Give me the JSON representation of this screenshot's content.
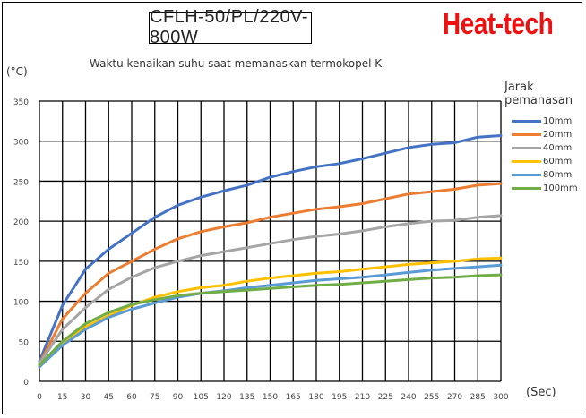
{
  "header": {
    "model": "CFLH-50/PL/220V-800W",
    "brand": "Heat-tech"
  },
  "chart_data": {
    "type": "line",
    "title": "Waktu kenaikan suhu saat memanaskan termokopel K",
    "xlabel": "(Sec)",
    "ylabel": "(°C)",
    "xlim": [
      0,
      300
    ],
    "ylim": [
      0,
      350
    ],
    "grid": true,
    "legend_position": "right",
    "legend_title": [
      "Jarak",
      "pemanasan"
    ],
    "x_ticks": [
      0,
      15,
      30,
      45,
      60,
      75,
      90,
      105,
      120,
      135,
      150,
      165,
      180,
      195,
      210,
      225,
      240,
      255,
      270,
      285,
      300
    ],
    "y_ticks": [
      0,
      50,
      100,
      150,
      200,
      250,
      300,
      350
    ],
    "x": [
      0,
      15,
      30,
      45,
      60,
      75,
      90,
      105,
      120,
      135,
      150,
      165,
      180,
      195,
      210,
      225,
      240,
      255,
      270,
      285,
      300
    ],
    "series": [
      {
        "name": "10mm",
        "color": "#4472c4",
        "values": [
          25,
          95,
          140,
          165,
          185,
          205,
          220,
          230,
          238,
          245,
          255,
          262,
          268,
          272,
          278,
          285,
          292,
          296,
          298,
          305,
          307
        ]
      },
      {
        "name": "20mm",
        "color": "#ed7d31",
        "values": [
          22,
          78,
          110,
          135,
          150,
          165,
          178,
          187,
          193,
          198,
          205,
          210,
          215,
          218,
          222,
          228,
          234,
          237,
          240,
          245,
          247
        ]
      },
      {
        "name": "40mm",
        "color": "#a5a5a5",
        "values": [
          22,
          65,
          92,
          115,
          130,
          142,
          150,
          157,
          162,
          167,
          172,
          177,
          181,
          184,
          188,
          193,
          197,
          200,
          201,
          205,
          207
        ]
      },
      {
        "name": "60mm",
        "color": "#ffc000",
        "values": [
          20,
          48,
          68,
          82,
          95,
          105,
          112,
          117,
          120,
          125,
          129,
          132,
          135,
          137,
          140,
          143,
          146,
          148,
          150,
          153,
          154
        ]
      },
      {
        "name": "80mm",
        "color": "#5b9bd5",
        "values": [
          18,
          45,
          65,
          80,
          90,
          98,
          105,
          110,
          113,
          117,
          120,
          123,
          126,
          128,
          130,
          133,
          136,
          139,
          141,
          143,
          145
        ]
      },
      {
        "name": "100mm",
        "color": "#70ad47",
        "values": [
          20,
          50,
          72,
          86,
          96,
          102,
          107,
          110,
          112,
          114,
          116,
          118,
          120,
          121,
          123,
          125,
          127,
          129,
          130,
          132,
          133
        ]
      }
    ]
  }
}
